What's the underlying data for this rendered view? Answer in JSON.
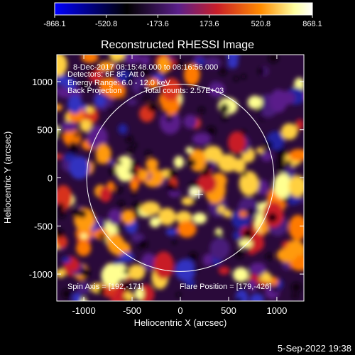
{
  "chart_data": {
    "type": "heatmap",
    "title": "Reconstructed RHESSI Image",
    "xlabel": "Heliocentric X (arcsec)",
    "ylabel": "Heliocentric Y (arcsec)",
    "xlim": [
      -1280,
      1280
    ],
    "ylim": [
      -1280,
      1280
    ],
    "x_ticks": [
      -1000,
      -500,
      0,
      500,
      1000
    ],
    "y_ticks": [
      -1000,
      -500,
      0,
      500,
      1000
    ],
    "colorbar": {
      "min": -868.1,
      "max": 868.1,
      "tick_labels": [
        "-868.1",
        "-520.8",
        "-173.6",
        "173.6",
        "520.8",
        "868.1"
      ],
      "colors": [
        "#0000ff",
        "#000000",
        "#5a1f8a",
        "#c81e28",
        "#ff8c00",
        "#ffffa0",
        "#ffffff"
      ]
    },
    "annotations": [
      "8-Dec-2017 08:15:48.000 to 08:16:56.000",
      "Detectors: 6F 8F, Att 0",
      "Energy Range: 6.0 - 12.0 keV",
      "Back Projection",
      "Total counts: 2.57E+03"
    ],
    "spin_axis_text": "Spin Axis = [192,-171]",
    "flare_position_text": "Flare Position = [179,-426]",
    "solar_limb_radius": 970,
    "cross_marker": [
      192,
      -171
    ],
    "grid": false
  },
  "footer": {
    "timestamp": "5-Sep-2022 19:38"
  }
}
